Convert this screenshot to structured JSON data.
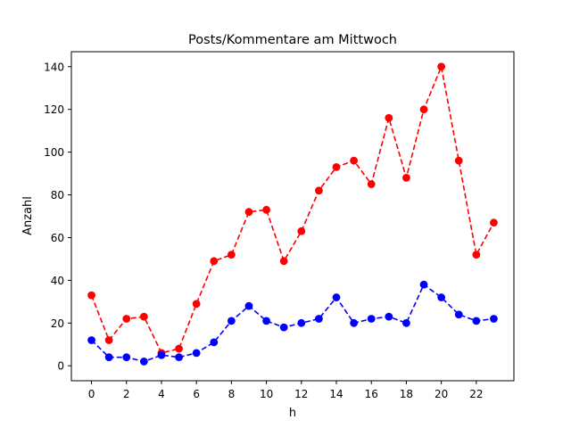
{
  "chart_data": {
    "type": "line",
    "title": "Posts/Kommentare am Mittwoch",
    "xlabel": "h",
    "ylabel": "Anzahl",
    "xlim": [
      -1.15,
      24.15
    ],
    "ylim": [
      -7,
      147
    ],
    "x_ticks": [
      0,
      2,
      4,
      6,
      8,
      10,
      12,
      14,
      16,
      18,
      20,
      22
    ],
    "y_ticks": [
      0,
      20,
      40,
      60,
      80,
      100,
      120,
      140
    ],
    "grid": false,
    "x": [
      0,
      1,
      2,
      3,
      4,
      5,
      6,
      7,
      8,
      9,
      10,
      11,
      12,
      13,
      14,
      15,
      16,
      17,
      18,
      19,
      20,
      21,
      22,
      23
    ],
    "series": [
      {
        "color": "#ff0000",
        "line_style": "dashed",
        "marker": "circle",
        "values": [
          33,
          12,
          22,
          23,
          6,
          8,
          29,
          49,
          52,
          72,
          73,
          49,
          63,
          82,
          93,
          96,
          85,
          116,
          88,
          120,
          140,
          96,
          52,
          67
        ]
      },
      {
        "color": "#0000ff",
        "line_style": "dashed",
        "marker": "circle",
        "values": [
          12,
          4,
          4,
          2,
          5,
          4,
          6,
          11,
          21,
          28,
          21,
          18,
          20,
          22,
          32,
          20,
          22,
          23,
          20,
          38,
          32,
          24,
          21,
          22
        ]
      }
    ]
  }
}
